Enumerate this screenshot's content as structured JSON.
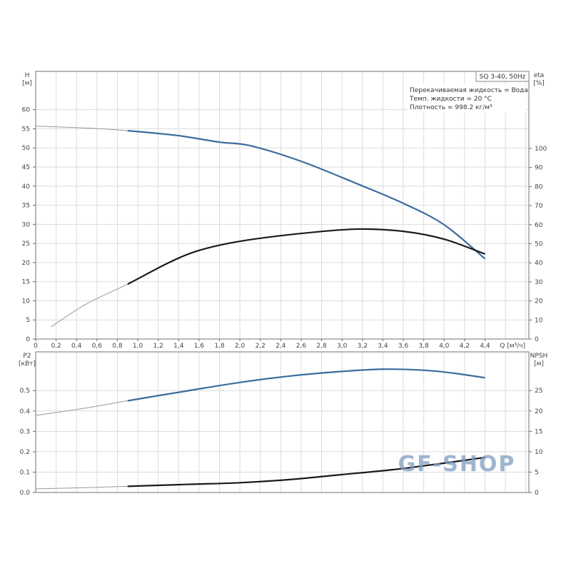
{
  "chart_data": [
    {
      "type": "line",
      "title_box": "SQ 3-40, 50Hz",
      "info_lines": [
        "Перекачиваемая жидкость = Вода",
        "Темп. жидкости = 20 °C",
        "Плотность = 998.2 кг/м³"
      ],
      "xlabel": "Q [м³/ч]",
      "xlim": [
        0,
        4.83
      ],
      "xticks": [
        "0",
        "0,2",
        "0,4",
        "0,6",
        "0,8",
        "1,0",
        "1,2",
        "1,4",
        "1,6",
        "1,8",
        "2,0",
        "2,2",
        "2,4",
        "2,6",
        "2,8",
        "3,0",
        "3,2",
        "3,4",
        "3,6",
        "3,8",
        "4,0",
        "4,2",
        "4,4"
      ],
      "ylabel_left": [
        "H",
        "[м]"
      ],
      "ylim_left": [
        0,
        60.5
      ],
      "yticks_left": [
        "0",
        "5",
        "10",
        "15",
        "20",
        "25",
        "30",
        "35",
        "40",
        "45",
        "50",
        "55",
        "60"
      ],
      "ylabel_right": [
        "eta",
        "[%]"
      ],
      "ylim_right": [
        0,
        100
      ],
      "yticks_right": [
        "0",
        "10",
        "20",
        "30",
        "40",
        "50",
        "60",
        "70",
        "80",
        "90",
        "100"
      ],
      "grid": true,
      "series": [
        {
          "name": "H",
          "axis": "left",
          "color": "#3b6c9e",
          "x": [
            0,
            0.5,
            0.9,
            1.4,
            1.8,
            2.1,
            2.6,
            3.15,
            3.6,
            4.0,
            4.4
          ],
          "y": [
            55.7,
            55.2,
            54.5,
            53.2,
            51.5,
            50.6,
            46.5,
            40.6,
            35.5,
            29.9,
            21.0
          ]
        },
        {
          "name": "eta",
          "axis": "right",
          "color": "#1a1a1a",
          "x": [
            0.15,
            0.5,
            0.9,
            1.3,
            1.6,
            2.0,
            2.6,
            3.15,
            3.6,
            4.0,
            4.4
          ],
          "y": [
            6.4,
            18.5,
            28.8,
            40.0,
            46.5,
            51.3,
            55.4,
            57.7,
            56.5,
            52.4,
            44.6
          ]
        }
      ],
      "thin_until_q": 0.9
    },
    {
      "type": "line",
      "xlim": [
        0,
        4.83
      ],
      "ylabel_left": [
        "P2",
        "[кВт]"
      ],
      "ylim_left": [
        0,
        0.69
      ],
      "yticks_left": [
        "0.0",
        "0.1",
        "0.2",
        "0.3",
        "0.4",
        "0.5"
      ],
      "ylabel_right": [
        "NPSH",
        "[м]"
      ],
      "ylim_right": [
        0,
        34.5
      ],
      "yticks_right": [
        "0",
        "5",
        "10",
        "15",
        "20",
        "25"
      ],
      "grid": true,
      "series": [
        {
          "name": "P2",
          "axis": "left",
          "color": "#3b6c9e",
          "x": [
            0,
            0.5,
            0.9,
            1.5,
            2.0,
            2.5,
            3.0,
            3.4,
            3.8,
            4.1,
            4.4
          ],
          "y": [
            0.378,
            0.415,
            0.45,
            0.5,
            0.54,
            0.572,
            0.594,
            0.605,
            0.6,
            0.585,
            0.563
          ]
        },
        {
          "name": "NPSH",
          "axis": "right",
          "color": "#1a1a1a",
          "x": [
            0,
            0.5,
            1.0,
            1.5,
            2.0,
            2.5,
            3.0,
            3.5,
            4.0,
            4.4
          ],
          "y": [
            0.9,
            1.2,
            1.6,
            2.0,
            2.4,
            3.2,
            4.4,
            5.6,
            7.2,
            8.6
          ]
        }
      ],
      "thin_until_q": 0.9
    }
  ],
  "watermark": "GF-SHOP"
}
